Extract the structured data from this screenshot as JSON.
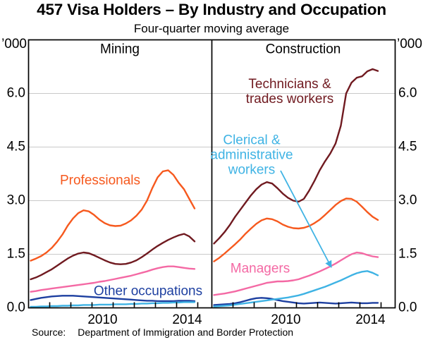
{
  "header": {
    "title": "457 Visa Holders – By Industry and Occupation",
    "subtitle": "Four-quarter moving average"
  },
  "colors": {
    "orange": "#F6591E",
    "dark_red": "#701A20",
    "pink": "#F469A4",
    "dark_blue": "#1D3FA0",
    "light_blue": "#3FB3E4",
    "gridline": "#C9C9C9",
    "frame": "#000000"
  },
  "chart_data": {
    "type": "line",
    "unit_label": "’000",
    "ylim": [
      0,
      7.5
    ],
    "y_ticks": [
      0,
      1.5,
      3,
      4.5,
      6
    ],
    "grid": "horizontal",
    "legend_position": "inline-labels",
    "x_start": 2007.1,
    "x_step": 0.25,
    "x_axis_tick_years": [
      2008,
      2009,
      2010,
      2011,
      2012,
      2013,
      2014,
      2015
    ],
    "x_year_labels": [
      "2010",
      "2014"
    ],
    "panels": [
      {
        "title": "Mining",
        "series": [
          {
            "name": "Other occupations",
            "color": "dark_blue",
            "values": [
              0.22,
              0.25,
              0.28,
              0.3,
              0.32,
              0.33,
              0.34,
              0.34,
              0.34,
              0.33,
              0.32,
              0.31,
              0.3,
              0.29,
              0.28,
              0.27,
              0.26,
              0.25,
              0.24,
              0.23,
              0.22,
              0.21,
              0.2,
              0.2,
              0.19,
              0.19,
              0.19,
              0.19,
              0.2,
              0.2,
              0.2,
              0.19
            ]
          },
          {
            "name": "Clerical & administrative workers",
            "color": "light_blue",
            "values": [
              0.03,
              0.03,
              0.04,
              0.04,
              0.05,
              0.05,
              0.06,
              0.06,
              0.07,
              0.07,
              0.08,
              0.08,
              0.08,
              0.09,
              0.09,
              0.09,
              0.1,
              0.1,
              0.1,
              0.11,
              0.11,
              0.12,
              0.12,
              0.13,
              0.13,
              0.14,
              0.14,
              0.15,
              0.15,
              0.16,
              0.16,
              0.16
            ]
          },
          {
            "name": "Managers",
            "color": "pink",
            "values": [
              0.45,
              0.47,
              0.5,
              0.52,
              0.54,
              0.56,
              0.58,
              0.6,
              0.62,
              0.64,
              0.66,
              0.68,
              0.7,
              0.73,
              0.75,
              0.78,
              0.81,
              0.84,
              0.87,
              0.9,
              0.94,
              0.98,
              1.02,
              1.07,
              1.11,
              1.14,
              1.16,
              1.16,
              1.14,
              1.12,
              1.1,
              1.09
            ]
          },
          {
            "name": "Technicians & trades workers",
            "color": "dark_red",
            "values": [
              0.8,
              0.85,
              0.92,
              1.0,
              1.08,
              1.18,
              1.28,
              1.38,
              1.46,
              1.52,
              1.55,
              1.53,
              1.47,
              1.4,
              1.33,
              1.27,
              1.23,
              1.22,
              1.23,
              1.27,
              1.33,
              1.42,
              1.52,
              1.63,
              1.73,
              1.82,
              1.9,
              1.97,
              2.03,
              2.07,
              2.0,
              1.86
            ]
          },
          {
            "name": "Professionals",
            "color": "orange",
            "values": [
              1.32,
              1.38,
              1.45,
              1.55,
              1.68,
              1.85,
              2.05,
              2.3,
              2.5,
              2.65,
              2.73,
              2.7,
              2.6,
              2.47,
              2.37,
              2.31,
              2.29,
              2.3,
              2.36,
              2.45,
              2.58,
              2.75,
              3.0,
              3.35,
              3.65,
              3.82,
              3.85,
              3.72,
              3.5,
              3.32,
              3.05,
              2.78
            ]
          }
        ]
      },
      {
        "title": "Construction",
        "series": [
          {
            "name": "Other occupations",
            "color": "dark_blue",
            "values": [
              0.08,
              0.09,
              0.1,
              0.11,
              0.13,
              0.16,
              0.2,
              0.24,
              0.27,
              0.28,
              0.27,
              0.25,
              0.22,
              0.19,
              0.17,
              0.15,
              0.13,
              0.12,
              0.13,
              0.14,
              0.15,
              0.14,
              0.13,
              0.12,
              0.13,
              0.14,
              0.15,
              0.14,
              0.13,
              0.13,
              0.14,
              0.14
            ]
          },
          {
            "name": "Clerical & administrative workers",
            "color": "light_blue",
            "values": [
              0.04,
              0.05,
              0.06,
              0.07,
              0.09,
              0.11,
              0.13,
              0.15,
              0.17,
              0.19,
              0.21,
              0.23,
              0.25,
              0.27,
              0.29,
              0.32,
              0.35,
              0.39,
              0.44,
              0.49,
              0.54,
              0.59,
              0.65,
              0.71,
              0.77,
              0.84,
              0.91,
              0.97,
              1.01,
              1.03,
              0.98,
              0.91
            ]
          },
          {
            "name": "Managers",
            "color": "pink",
            "values": [
              0.36,
              0.38,
              0.4,
              0.43,
              0.46,
              0.5,
              0.54,
              0.58,
              0.62,
              0.66,
              0.7,
              0.72,
              0.74,
              0.74,
              0.75,
              0.77,
              0.8,
              0.85,
              0.9,
              0.96,
              1.02,
              1.09,
              1.16,
              1.24,
              1.33,
              1.42,
              1.5,
              1.55,
              1.53,
              1.48,
              1.44,
              1.42
            ]
          },
          {
            "name": "Technicians & trades workers",
            "color": "dark_red",
            "values": [
              1.8,
              1.95,
              2.12,
              2.32,
              2.55,
              2.75,
              2.95,
              3.15,
              3.32,
              3.45,
              3.52,
              3.48,
              3.35,
              3.2,
              3.08,
              3.0,
              2.97,
              3.05,
              3.28,
              3.55,
              3.85,
              4.1,
              4.32,
              4.6,
              5.1,
              6.0,
              6.3,
              6.44,
              6.48,
              6.62,
              6.68,
              6.63
            ]
          },
          {
            "name": "Professionals",
            "color": "orange",
            "values": [
              1.3,
              1.4,
              1.52,
              1.65,
              1.78,
              1.92,
              2.08,
              2.22,
              2.35,
              2.45,
              2.5,
              2.48,
              2.42,
              2.33,
              2.27,
              2.23,
              2.22,
              2.24,
              2.29,
              2.37,
              2.47,
              2.6,
              2.74,
              2.88,
              2.99,
              3.06,
              3.05,
              2.97,
              2.83,
              2.68,
              2.55,
              2.46
            ]
          }
        ]
      }
    ],
    "series_labels": {
      "professionals": {
        "text": "Professionals",
        "color": "orange"
      },
      "other_occupations": {
        "text": "Other occupations",
        "color": "dark_blue"
      },
      "technicians": {
        "lines": [
          "Technicians &",
          "trades workers"
        ],
        "color": "dark_red"
      },
      "clerical": {
        "lines": [
          "Clerical &",
          "administrative",
          "workers"
        ],
        "color": "light_blue"
      },
      "managers": {
        "text": "Managers",
        "color": "pink"
      }
    }
  },
  "footer": {
    "source_label": "Source:",
    "source_text": "Department of Immigration and Border Protection"
  }
}
